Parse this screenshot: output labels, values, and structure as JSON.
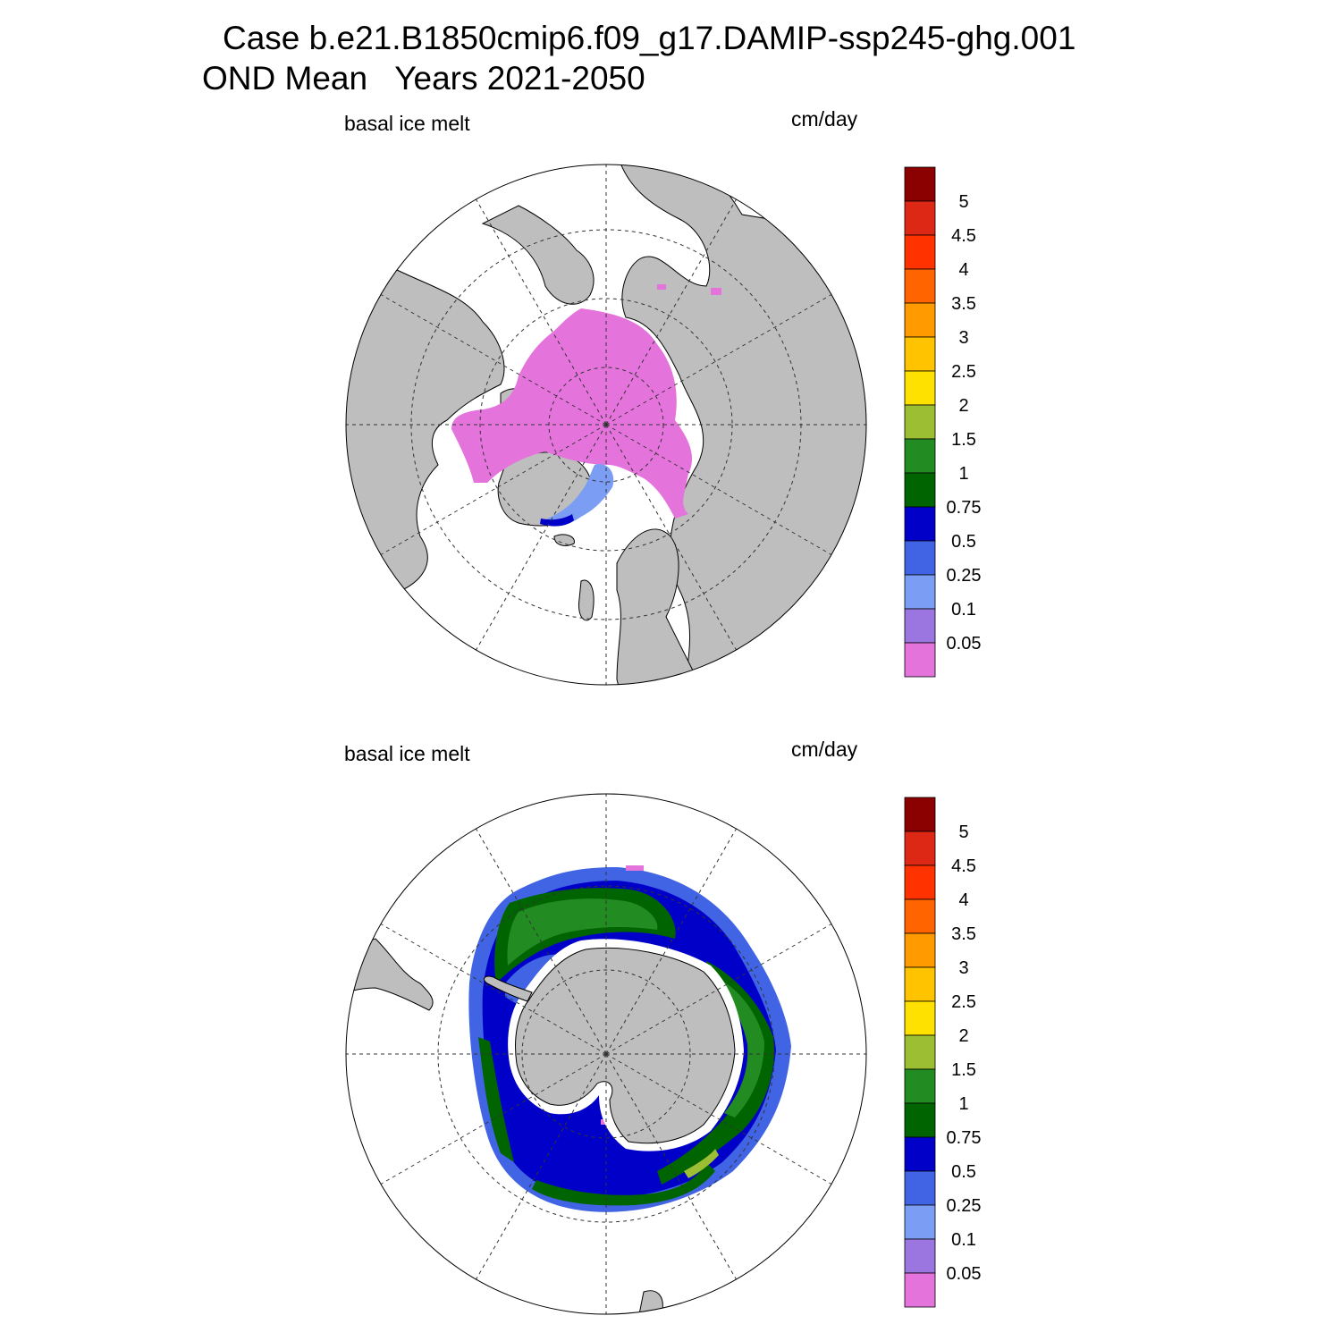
{
  "title": {
    "line1": "Case b.e21.B1850cmip6.f09_g17.DAMIP-ssp245-ghg.001",
    "line2": "OND Mean   Years 2021-2050"
  },
  "colors": {
    "land": "#bebebe",
    "no_data": "#ffffff",
    "levels": [
      "#e474dc",
      "#9b76e0",
      "#7b9ef4",
      "#4164e4",
      "#0000c8",
      "#006400",
      "#228b22",
      "#9bbe32",
      "#ffe100",
      "#ffc300",
      "#ff9b00",
      "#ff6400",
      "#ff3200",
      "#dc2814",
      "#8b0000"
    ]
  },
  "panels": [
    {
      "id": "north",
      "hemisphere": "Arctic",
      "variable_label": "basal ice melt",
      "units_label": "cm/day",
      "colorbar_ticks": [
        "5",
        "4.5",
        "4",
        "3.5",
        "3",
        "2.5",
        "2",
        "1.5",
        "1",
        "0.75",
        "0.5",
        "0.25",
        "0.1",
        "0.05"
      ]
    },
    {
      "id": "south",
      "hemisphere": "Antarctic",
      "variable_label": "basal ice melt",
      "units_label": "cm/day",
      "colorbar_ticks": [
        "5",
        "4.5",
        "4",
        "3.5",
        "3",
        "2.5",
        "2",
        "1.5",
        "1",
        "0.75",
        "0.5",
        "0.25",
        "0.1",
        "0.05"
      ]
    }
  ]
}
